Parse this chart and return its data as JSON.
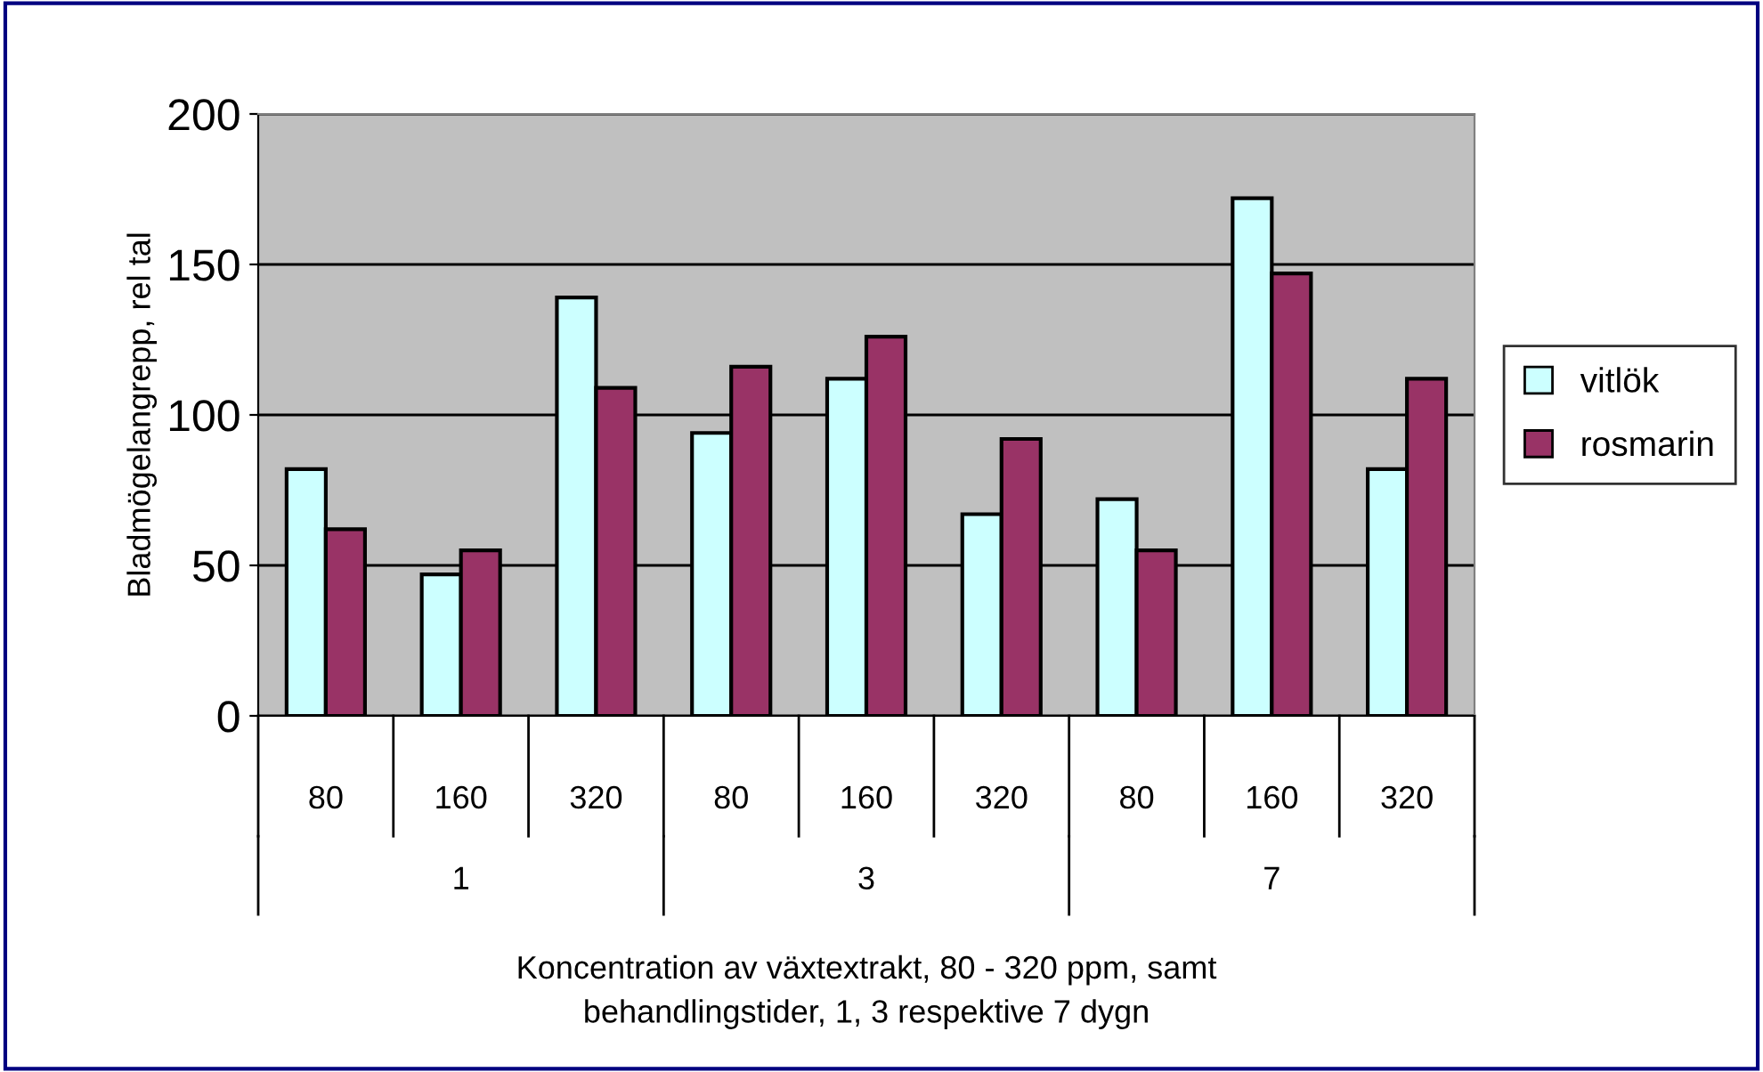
{
  "chart_data": {
    "type": "bar",
    "xlabel": "Koncentration av växtextrakt, 80 - 320 ppm, samt\nbehandlingstider, 1, 3 respektive 7 dygn",
    "ylabel": "Bladmögelangrepp, rel tal",
    "categories": [
      "80",
      "160",
      "320",
      "80",
      "160",
      "320",
      "80",
      "160",
      "320"
    ],
    "annotations": [
      "1",
      "3",
      "7"
    ],
    "series": [
      {
        "name": "vitlök",
        "color": "#ccffff",
        "values": [
          82,
          47,
          139,
          94,
          112,
          67,
          72,
          172,
          82
        ]
      },
      {
        "name": "rosmarin",
        "color": "#993366",
        "values": [
          62,
          55,
          109,
          116,
          126,
          92,
          55,
          147,
          112
        ]
      }
    ],
    "ylim": [
      0,
      200
    ],
    "yticks": [
      0,
      50,
      100,
      150,
      200
    ],
    "grid": "y",
    "legend": "right"
  }
}
